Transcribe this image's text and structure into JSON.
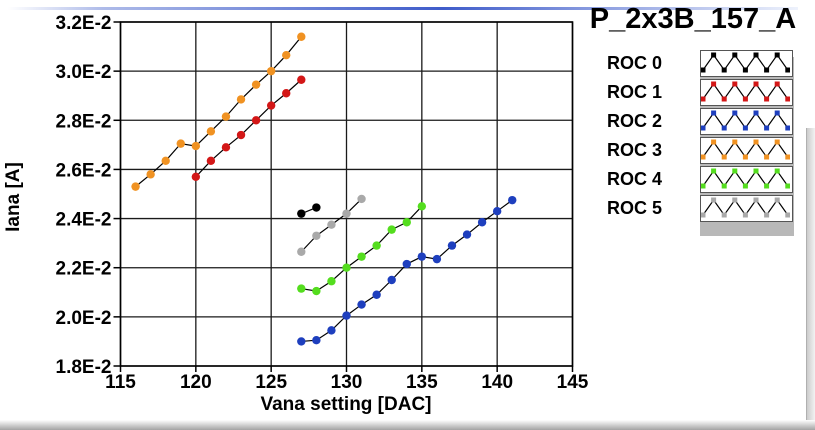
{
  "title": "P_2x3B_157_A",
  "window": {
    "top_accent_color": "#3f5cca"
  },
  "legend": {
    "position": "right",
    "marker_style": "zigzag-line-with-square-markers",
    "line_color": "#000000",
    "entries": [
      {
        "label": "ROC 0",
        "color": "#000000"
      },
      {
        "label": "ROC 1",
        "color": "#d31717"
      },
      {
        "label": "ROC 2",
        "color": "#1e3fbe"
      },
      {
        "label": "ROC 3",
        "color": "#f09222"
      },
      {
        "label": "ROC 4",
        "color": "#54dd1e"
      },
      {
        "label": "ROC 5",
        "color": "#a9a9a9"
      }
    ]
  },
  "chart_data": {
    "type": "line",
    "title": "P_2x3B_157_A",
    "xlabel": "Vana setting [DAC]",
    "ylabel": "Iana [A]",
    "xlim": [
      115,
      145
    ],
    "ylim_amps": [
      0.018,
      0.032
    ],
    "x_ticks": [
      115,
      120,
      125,
      130,
      135,
      140,
      145
    ],
    "x_tick_labels": [
      "115",
      "120",
      "125",
      "130",
      "135",
      "140",
      "145"
    ],
    "y_ticks_e2": [
      1.8,
      2.0,
      2.2,
      2.4,
      2.6,
      2.8,
      3.0,
      3.2
    ],
    "y_tick_labels": [
      "1.8E-2",
      "2.0E-2",
      "2.2E-2",
      "2.4E-2",
      "2.6E-2",
      "2.8E-2",
      "3.0E-2",
      "3.2E-2"
    ],
    "y_unit": "A",
    "y_scale_note": "series y values are in units of 1E-2 A",
    "grid": true,
    "legend_position": "right",
    "marker": "circle",
    "line_color": "#000000",
    "series": [
      {
        "name": "ROC 0",
        "color": "#000000",
        "x": [
          127,
          128
        ],
        "y": [
          2.42,
          2.445
        ]
      },
      {
        "name": "ROC 1",
        "color": "#d31717",
        "x": [
          120,
          121,
          122,
          123,
          124,
          125,
          126,
          127
        ],
        "y": [
          2.57,
          2.635,
          2.69,
          2.74,
          2.8,
          2.86,
          2.91,
          2.965
        ]
      },
      {
        "name": "ROC 2",
        "color": "#1e3fbe",
        "x": [
          127,
          128,
          129,
          130,
          131,
          132,
          133,
          134,
          135,
          136,
          137,
          138,
          139,
          140,
          141
        ],
        "y": [
          1.9,
          1.905,
          1.945,
          2.005,
          2.05,
          2.09,
          2.15,
          2.215,
          2.245,
          2.235,
          2.29,
          2.335,
          2.385,
          2.43,
          2.475
        ]
      },
      {
        "name": "ROC 3",
        "color": "#f09222",
        "x": [
          116,
          117,
          118,
          119,
          120,
          121,
          122,
          123,
          124,
          125,
          126,
          127
        ],
        "y": [
          2.53,
          2.58,
          2.635,
          2.705,
          2.695,
          2.755,
          2.815,
          2.885,
          2.945,
          3.0,
          3.065,
          3.14
        ]
      },
      {
        "name": "ROC 4",
        "color": "#54dd1e",
        "x": [
          127,
          128,
          129,
          130,
          131,
          132,
          133,
          134,
          135
        ],
        "y": [
          2.115,
          2.105,
          2.145,
          2.2,
          2.245,
          2.29,
          2.355,
          2.385,
          2.45
        ]
      },
      {
        "name": "ROC 5",
        "color": "#a9a9a9",
        "x": [
          127,
          128,
          129,
          130,
          131
        ],
        "y": [
          2.265,
          2.33,
          2.375,
          2.42,
          2.48
        ]
      }
    ]
  }
}
